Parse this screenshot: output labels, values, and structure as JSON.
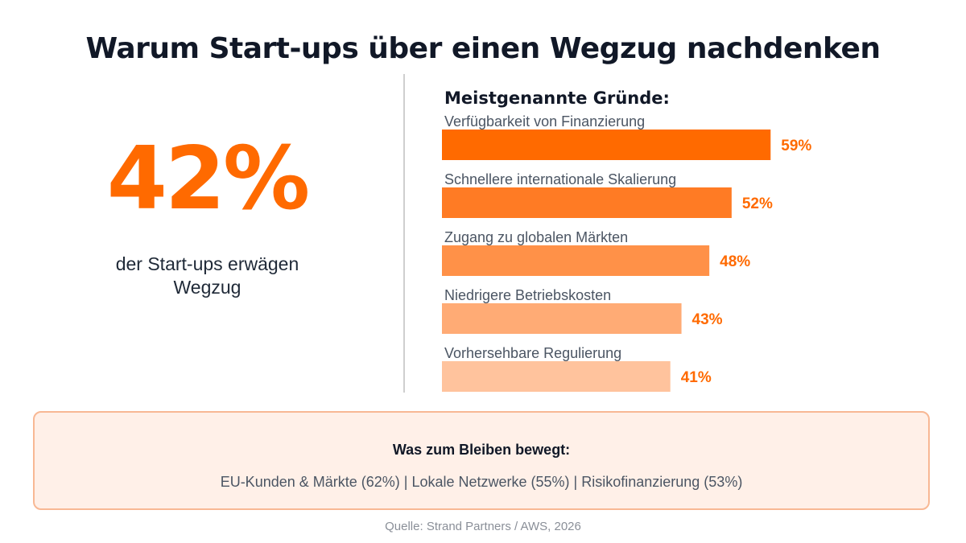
{
  "title": "Warum Start-ups über einen Wegzug nachdenken",
  "headline_stat": {
    "value": "42%",
    "caption": "der Start-ups erwägen Wegzug"
  },
  "colors": {
    "accent": "#ff6a00",
    "bars": [
      "#ff6a00",
      "#ff7b24",
      "#ff9148",
      "#ffab75",
      "#ffc39d"
    ]
  },
  "chart_data": {
    "type": "bar",
    "orientation": "horizontal",
    "title": "Meistgenannte Gründe:",
    "categories": [
      "Verfügbarkeit von Finanzierung",
      "Schnellere internationale Skalierung",
      "Zugang zu globalen Märkten",
      "Niedrigere Betriebskosten",
      "Vorhersehbare Regulierung"
    ],
    "values": [
      59,
      52,
      48,
      43,
      41
    ],
    "value_labels": [
      "59%",
      "52%",
      "48%",
      "43%",
      "41%"
    ],
    "unit": "%",
    "xlim": [
      0,
      100
    ],
    "grid": false
  },
  "stay_reasons": {
    "title": "Was zum Bleiben bewegt:",
    "text": "EU-Kunden & Märkte (62%)  |  Lokale Netzwerke (55%)  |  Risikofinanzierung (53%)"
  },
  "source": "Quelle: Strand Partners / AWS, 2026"
}
